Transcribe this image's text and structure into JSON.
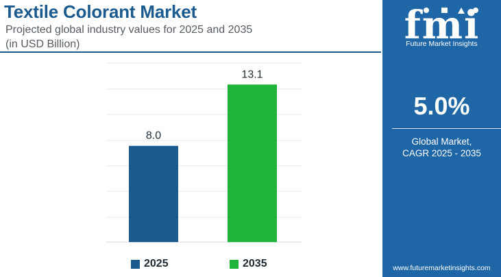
{
  "header": {
    "title": "Textile Colorant Market",
    "subtitle": "Projected global industry values for 2025 and 2035",
    "unit": "(in USD Billion)"
  },
  "colors": {
    "brand_blue": "#1f66a6",
    "bar_2025": "#1b5a8f",
    "bar_2035": "#1fb33a",
    "title": "#1b5a8f"
  },
  "chart_data": {
    "type": "bar",
    "categories": [
      "2025",
      "2035"
    ],
    "values": [
      8.0,
      13.1
    ],
    "data_labels": [
      "8.0",
      "13.1"
    ],
    "colors": [
      "#1b5a8f",
      "#1fb33a"
    ],
    "ylim": [
      0,
      15
    ],
    "grid": true,
    "legend": {
      "position": "bottom",
      "entries": [
        {
          "label": "2025",
          "color": "#1b5a8f"
        },
        {
          "label": "2035",
          "color": "#1fb33a"
        }
      ]
    }
  },
  "sidebar": {
    "logo_letters": "fmi",
    "logo_tagline": "Future Market Insights",
    "cagr_value": "5.0%",
    "cagr_label_line1": "Global Market,",
    "cagr_label_line2": "CAGR 2025 - 2035",
    "website": "www.futuremarketinsights.com"
  }
}
